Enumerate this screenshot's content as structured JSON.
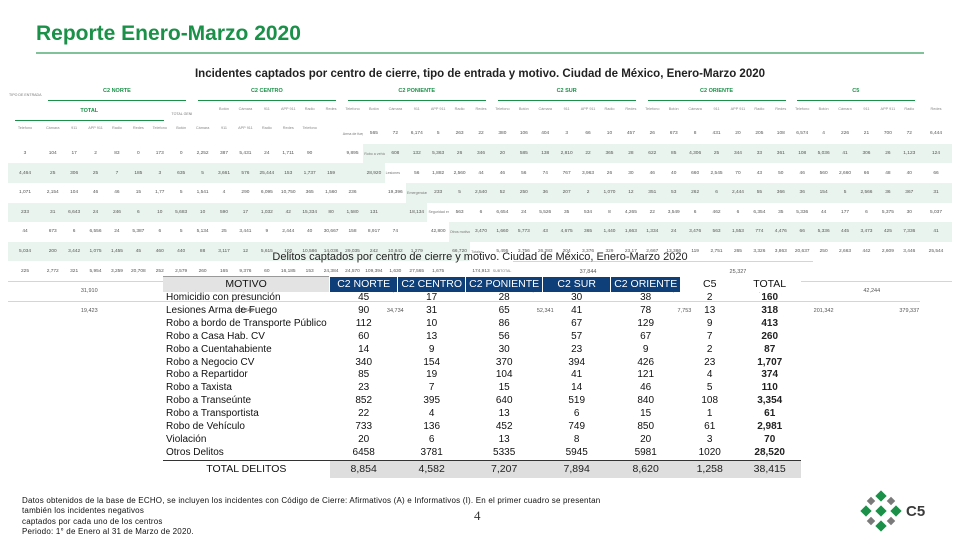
{
  "slide": {
    "title": "Reporte Enero-Marzo 2020",
    "page_number": "4",
    "logo_text": "C5"
  },
  "table1": {
    "title": "Incidentes captados por centro de cierre, tipo de entrada y motivo. Ciudad de México, Enero-Marzo 2020",
    "row_header_label": "TIPO DE ENTRADA / MOTIVO",
    "total_general_label": "TOTAL GENERAL",
    "groups": [
      "C2 NORTE",
      "C2 CENTRO",
      "C2 PONIENTE",
      "C2 SUR",
      "C2 ORIENTE",
      "C5",
      "TOTAL"
    ],
    "subcolumns_7": [
      "Botón",
      "Cámara",
      "911",
      "APP 911",
      "Radio",
      "Redes",
      "Telefono"
    ],
    "subcolumns_6": [
      "Cámara",
      "911",
      "APP 911",
      "Radio",
      "Redes",
      "Telefono"
    ],
    "rows": [
      {
        "label": "Arma de fuego",
        "cells": [
          "565",
          "72",
          "6,174",
          "5",
          "263",
          "22",
          "",
          "380",
          "106",
          "404",
          "3",
          "66",
          "10",
          "457",
          "26",
          "673",
          "8",
          "431",
          "20",
          "205",
          "108",
          "6,574",
          "4",
          "226",
          "21",
          "700",
          "72",
          "6,444",
          "3",
          "104",
          "17",
          "2",
          "83",
          "0",
          "173",
          "0",
          "2,252",
          "387",
          "5,431",
          "24",
          "1,711",
          "90",
          ""
        ],
        "total": "9,895"
      },
      {
        "label": "Robo a vehículo",
        "cells": [
          "608",
          "132",
          "5,363",
          "26",
          "346",
          "20",
          "",
          "585",
          "138",
          "2,810",
          "22",
          "365",
          "28",
          "622",
          "85",
          "4,306",
          "25",
          "344",
          "33",
          "361",
          "108",
          "5,036",
          "41",
          "306",
          "26",
          "1,123",
          "124",
          "4,464",
          "25",
          "306",
          "25",
          "7",
          "185",
          "3",
          "635",
          "5",
          "3,661",
          "576",
          "25,444",
          "153",
          "1,737",
          "159",
          ""
        ],
        "total": "28,920"
      },
      {
        "label": "Lesiones",
        "cells": [
          "56",
          "1,882",
          "2,560",
          "44",
          "46",
          "56",
          "",
          "74",
          "767",
          "3,963",
          "26",
          "30",
          "46",
          "40",
          "660",
          "2,545",
          "70",
          "43",
          "50",
          "46",
          "560",
          "2,660",
          "66",
          "48",
          "40",
          "66",
          "1,071",
          "2,154",
          "104",
          "46",
          "46",
          "15",
          "1,77",
          "5",
          "1,541",
          "4",
          "290",
          "6,095",
          "10,750",
          "365",
          "1,560",
          "236",
          ""
        ],
        "total": "19,396"
      },
      {
        "label": "Emergencias",
        "cells": [
          "233",
          "5",
          "2,540",
          "52",
          "250",
          "36",
          "",
          "207",
          "2",
          "1,070",
          "12",
          "351",
          "53",
          "262",
          "6",
          "2,444",
          "55",
          "366",
          "36",
          "154",
          "5",
          "2,566",
          "36",
          "367",
          "31",
          "233",
          "31",
          "6,643",
          "24",
          "246",
          "6",
          "10",
          "5,683",
          "10",
          "590",
          "17",
          "1,032",
          "42",
          "15,334",
          "80",
          "1,580",
          "131",
          ""
        ],
        "total": "18,134"
      },
      {
        "label": "Seguridad en vialidad",
        "cells": [
          "563",
          "6",
          "6,654",
          "24",
          "5,526",
          "35",
          "",
          "534",
          "8",
          "4,265",
          "22",
          "3,549",
          "6",
          "462",
          "6",
          "6,354",
          "35",
          "5,336",
          "44",
          "177",
          "6",
          "5,375",
          "30",
          "5,037",
          "44",
          "673",
          "6",
          "6,556",
          "24",
          "5,387",
          "6",
          "5",
          "5,134",
          "25",
          "3,441",
          "9",
          "2,444",
          "40",
          "30,667",
          "158",
          "8,917",
          "74",
          ""
        ],
        "total": "42,800"
      },
      {
        "label": "Otros motivos",
        "cells": [
          "3,470",
          "1,660",
          "5,773",
          "43",
          "4,675",
          "365",
          "",
          "1,440",
          "1,663",
          "1,334",
          "24",
          "3,476",
          "563",
          "1,553",
          "774",
          "4,476",
          "66",
          "5,336",
          "445",
          "3,473",
          "425",
          "7,336",
          "41",
          "5,034",
          "200",
          "3,442",
          "1,075",
          "1,455",
          "45",
          "460",
          "440",
          "88",
          "3,117",
          "12",
          "5,615",
          "100",
          "10,586",
          "14,036",
          "29,035",
          "242",
          "10,642",
          "1,279",
          ""
        ],
        "total": "66,720"
      },
      {
        "label": "Totales",
        "cells": [
          "5,495",
          "3,756",
          "26,283",
          "204",
          "3,376",
          "329",
          "",
          "23,17",
          "2,667",
          "13,386",
          "119",
          "2,751",
          "265",
          "3,326",
          "3,863",
          "20,637",
          "250",
          "2,663",
          "442",
          "2,609",
          "3,446",
          "25,544",
          "225",
          "2,772",
          "321",
          "5,954",
          "3,259",
          "20,708",
          "252",
          "2,579",
          "260",
          "165",
          "9,376",
          "60",
          "16,185",
          "153",
          "24,384",
          "24,570",
          "109,394",
          "1,630",
          "27,565",
          "1,675",
          ""
        ],
        "total": "174,913"
      }
    ],
    "subtotals": [
      "37,844",
      "25,327",
      "31,910",
      "29,493",
      "34,044",
      "18,879",
      "174,913"
    ],
    "grandtotals": [
      "42,244",
      "19,423",
      "42,342",
      "34,734",
      "52,341",
      "7,753",
      "201,342"
    ],
    "subtotal_label": "SUBTOTAL",
    "grandtotal_label": "TOTAL DE INCIDENTES",
    "subtotal_general": "174,913",
    "grandtotal_general": "379,337"
  },
  "table2": {
    "title": "Delitos captados por centro de cierre y motivo. Ciudad de México, Enero-Marzo 2020",
    "columns": [
      "MOTIVO",
      "C2 NORTE",
      "C2 CENTRO",
      "C2 PONIENTE",
      "C2 SUR",
      "C2 ORIENTE",
      "C5",
      "TOTAL"
    ],
    "rows": [
      {
        "motivo": "Homicidio con presunción",
        "values": [
          "45",
          "17",
          "28",
          "30",
          "38",
          "2",
          "160"
        ]
      },
      {
        "motivo": "Lesiones Arma de Fuego",
        "values": [
          "90",
          "31",
          "65",
          "41",
          "78",
          "13",
          "318"
        ]
      },
      {
        "motivo": "Robo a bordo de Transporte Público",
        "values": [
          "112",
          "10",
          "86",
          "67",
          "129",
          "9",
          "413"
        ]
      },
      {
        "motivo": "Robo a Casa Hab. CV",
        "values": [
          "60",
          "13",
          "56",
          "57",
          "67",
          "7",
          "260"
        ]
      },
      {
        "motivo": "Robo a Cuentahabiente",
        "values": [
          "14",
          "9",
          "30",
          "23",
          "9",
          "2",
          "87"
        ]
      },
      {
        "motivo": "Robo a Negocio CV",
        "values": [
          "340",
          "154",
          "370",
          "394",
          "426",
          "23",
          "1,707"
        ]
      },
      {
        "motivo": "Robo a Repartidor",
        "values": [
          "85",
          "19",
          "104",
          "41",
          "121",
          "4",
          "374"
        ]
      },
      {
        "motivo": "Robo a Taxista",
        "values": [
          "23",
          "7",
          "15",
          "14",
          "46",
          "5",
          "110"
        ]
      },
      {
        "motivo": "Robo a Transeúnte",
        "values": [
          "852",
          "395",
          "640",
          "519",
          "840",
          "108",
          "3,354"
        ]
      },
      {
        "motivo": "Robo a Transportista",
        "values": [
          "22",
          "4",
          "13",
          "6",
          "15",
          "1",
          "61"
        ]
      },
      {
        "motivo": "Robo de Vehículo",
        "values": [
          "733",
          "136",
          "452",
          "749",
          "850",
          "61",
          "2,981"
        ]
      },
      {
        "motivo": "Violación",
        "values": [
          "20",
          "6",
          "13",
          "8",
          "20",
          "3",
          "70"
        ]
      },
      {
        "motivo": "Otros Delitos",
        "values": [
          "6458",
          "3781",
          "5335",
          "5945",
          "5981",
          "1020",
          "28,520"
        ]
      }
    ],
    "total_label": "TOTAL DELITOS",
    "totals": [
      "8,854",
      "4,582",
      "7,207",
      "7,894",
      "8,620",
      "1,258",
      "38,415"
    ]
  },
  "footnote": {
    "line1": "Datos obtenidos de la base de ECHO, se incluyen los incidentes con Código de Cierre: Afirmativos (A) e Informativos (I). En el primer cuadro se presentan también los incidentes negativos",
    "line2": "captados por cada uno de los centros",
    "line3": "Periodo: 1° de Enero al 31 de Marzo de 2020."
  },
  "colors": {
    "accent_green": "#1a9048",
    "header_navy": "#0f3f78",
    "stripe": "#eaf4ee"
  }
}
